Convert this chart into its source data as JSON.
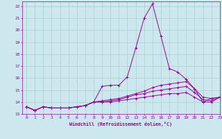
{
  "xlabel": "Windchill (Refroidissement éolien,°C)",
  "bg_color": "#cce8ee",
  "line_color": "#990099",
  "grid_color": "#aacccc",
  "xlim": [
    -0.5,
    23
  ],
  "ylim": [
    13,
    22.4
  ],
  "yticks": [
    13,
    14,
    15,
    16,
    17,
    18,
    19,
    20,
    21,
    22
  ],
  "xticks": [
    0,
    1,
    2,
    3,
    4,
    5,
    6,
    7,
    8,
    9,
    10,
    11,
    12,
    13,
    14,
    15,
    16,
    17,
    18,
    19,
    20,
    21,
    22,
    23
  ],
  "series": [
    [
      13.6,
      13.3,
      13.6,
      13.5,
      13.5,
      13.5,
      13.6,
      13.7,
      14.0,
      15.3,
      15.4,
      15.4,
      16.1,
      18.5,
      21.0,
      22.2,
      19.5,
      16.8,
      16.5,
      15.9,
      15.1,
      14.0,
      14.3,
      14.4
    ],
    [
      13.6,
      13.3,
      13.6,
      13.5,
      13.5,
      13.5,
      13.6,
      13.7,
      14.0,
      14.1,
      14.2,
      14.3,
      14.5,
      14.7,
      14.9,
      15.2,
      15.4,
      15.5,
      15.6,
      15.7,
      15.1,
      14.4,
      14.3,
      14.4
    ],
    [
      13.6,
      13.3,
      13.6,
      13.5,
      13.5,
      13.5,
      13.6,
      13.7,
      14.0,
      14.0,
      14.1,
      14.2,
      14.4,
      14.6,
      14.7,
      14.9,
      15.0,
      15.1,
      15.2,
      15.3,
      14.8,
      14.2,
      14.1,
      14.4
    ],
    [
      13.6,
      13.3,
      13.6,
      13.5,
      13.5,
      13.5,
      13.6,
      13.7,
      14.0,
      14.0,
      14.0,
      14.1,
      14.2,
      14.3,
      14.4,
      14.5,
      14.6,
      14.7,
      14.7,
      14.8,
      14.4,
      14.0,
      14.0,
      14.4
    ]
  ]
}
